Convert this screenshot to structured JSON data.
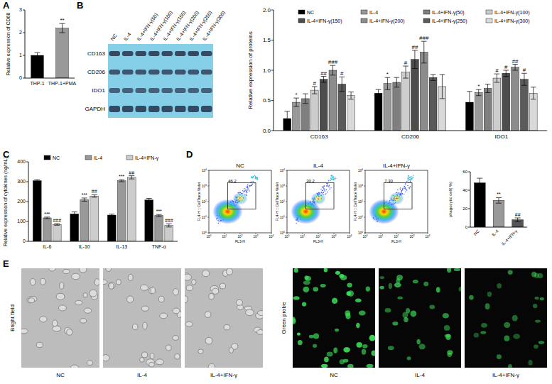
{
  "chart_data": [
    {
      "type": "bar",
      "y_label": "Relative expression  of CD68",
      "categories": [
        "THP-1",
        "THP-1+PMA"
      ],
      "values": [
        1.0,
        2.2
      ],
      "errors": [
        0.12,
        0.2
      ],
      "annotations": [
        null,
        "**"
      ],
      "colors": [
        "#000000",
        "#999999"
      ],
      "ylim": [
        0,
        3
      ],
      "yticks": [
        0,
        1,
        2,
        3
      ]
    },
    {
      "type": "bar",
      "y_label": "Relative expression  of proteins",
      "categories": [
        "CD163",
        "CD206",
        "IDO1"
      ],
      "legend": "top",
      "ylim": [
        0,
        2
      ],
      "yticks": [
        {
          "value": 0,
          "label": "0.0"
        },
        {
          "value": 0.5,
          "label": "0.5"
        },
        {
          "value": 1,
          "label": "1.0"
        },
        {
          "value": 1.5,
          "label": "1.5"
        },
        {
          "value": 2,
          "label": "2.0"
        }
      ],
      "series": [
        {
          "name": "NC",
          "color": "#000000",
          "values": [
            0.2,
            0.62,
            0.47
          ],
          "errors": [
            0.12,
            0.06,
            0.18
          ]
        },
        {
          "name": "IL-4",
          "color": "#999999",
          "values": [
            0.47,
            0.78,
            0.63
          ],
          "errors": [
            0.07,
            0.1,
            0.05
          ],
          "annotations": [
            "*",
            "*",
            "*"
          ]
        },
        {
          "name": "IL-4+IFN-γ(50)",
          "color": "#7f7f7f",
          "values": [
            0.53,
            0.8,
            0.7
          ],
          "errors": [
            0.08,
            0.08,
            0.07
          ]
        },
        {
          "name": "IL-4+IFN-γ(100)",
          "color": "#cccccc",
          "values": [
            0.67,
            0.97,
            0.87
          ],
          "errors": [
            0.06,
            0.1,
            0.07
          ],
          "annotations": [
            "#",
            "#",
            "#"
          ]
        },
        {
          "name": "IL-4+IFN-γ(150)",
          "color": "#4d4d4d",
          "values": [
            0.85,
            1.18,
            0.95
          ],
          "errors": [
            0.05,
            0.15,
            0.05
          ],
          "annotations": [
            "##",
            "##",
            "#"
          ]
        },
        {
          "name": "IL-4+IFN-γ(200)",
          "color": "#8c8c8c",
          "values": [
            1.0,
            1.3,
            1.05
          ],
          "errors": [
            0.08,
            0.18,
            0.05
          ],
          "annotations": [
            "###",
            "###",
            "##"
          ]
        },
        {
          "name": "IL-4+IFN-γ(250)",
          "color": "#5a5a5a",
          "values": [
            0.77,
            0.88,
            0.85
          ],
          "errors": [
            0.12,
            0.05,
            0.1
          ],
          "annotations": [
            "#",
            null,
            "#"
          ]
        },
        {
          "name": "IL-4+IFN-γ(300)",
          "color": "#d9d9d9",
          "values": [
            0.58,
            0.73,
            0.62
          ],
          "errors": [
            0.06,
            0.2,
            0.1
          ]
        }
      ]
    },
    {
      "type": "bar",
      "y_label": "Relative expression  of cytokines (ng/mL)",
      "categories": [
        "IL-6",
        "IL-10",
        "IL-13",
        "TNF-α"
      ],
      "legend": "top",
      "ylim": [
        0,
        400
      ],
      "yticks": [
        0,
        100,
        200,
        300,
        400
      ],
      "series": [
        {
          "name": "NC",
          "color": "#000000",
          "values": [
            305,
            138,
            132,
            208
          ],
          "errors": [
            5,
            10,
            5,
            8
          ]
        },
        {
          "name": "IL-4",
          "color": "#999999",
          "values": [
            118,
            210,
            305,
            130
          ],
          "errors": [
            4,
            8,
            5,
            5
          ],
          "annotations": [
            "***",
            "***",
            "***",
            "***"
          ]
        },
        {
          "name": "IL-4+IFN-γ",
          "color": "#cccccc",
          "values": [
            85,
            228,
            322,
            80
          ],
          "errors": [
            4,
            6,
            8,
            8
          ],
          "annotations": [
            "###",
            "##",
            "##",
            "###"
          ]
        }
      ]
    },
    {
      "type": "bar",
      "y_label": "phagocytic cell( %)",
      "categories": [
        "NC",
        "IL-4",
        "IL-4+IFN-γ"
      ],
      "values": [
        48,
        29,
        8
      ],
      "errors": [
        5,
        3,
        2
      ],
      "annotations": [
        null,
        "**",
        "##"
      ],
      "colors": [
        "#000000",
        "#999999",
        "#555555"
      ],
      "ylim": [
        0,
        60
      ],
      "yticks": [
        0,
        20,
        40,
        60
      ]
    }
  ],
  "panel_labels": [
    "A",
    "B",
    "C",
    "D",
    "E"
  ],
  "blot": {
    "lanes": [
      "NC",
      "IL-4",
      "IL-4+IFN-γ(50)",
      "IL-4+IFN-γ(100)",
      "IL-4+IFN-γ(150)",
      "IL-4+IFN-γ(200)",
      "IL-4+IFN-γ(250)",
      "IL-4+IFN-γ(300)"
    ],
    "rows": [
      "CD163",
      "CD206",
      "IDO1",
      "GAPDH"
    ]
  },
  "flow_cytometry": {
    "titles": [
      "NC",
      "IL-4",
      "IL-4+IFN-γ"
    ],
    "gates": [
      "46.2",
      "30.2",
      "7.30"
    ],
    "x_label": "FL3-H",
    "y_label": "FL4-H :: CellTrace Violet",
    "tick_base": "10",
    "tick_exponents": [
      "0",
      "1",
      "2",
      "3",
      "4"
    ]
  },
  "images": {
    "rows": [
      "Bright field",
      "Green probe"
    ],
    "labels": [
      "NC",
      "IL-4",
      "IL-4+IFN-γ"
    ]
  }
}
